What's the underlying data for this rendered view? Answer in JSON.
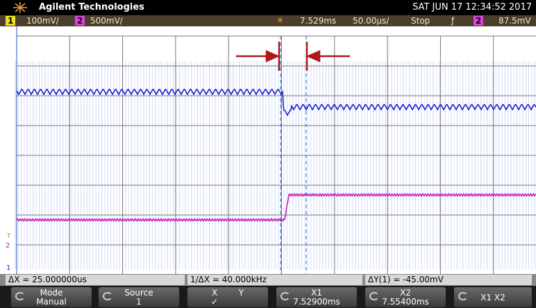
{
  "header": {
    "brand": "Agilent Technologies",
    "datetime": "SAT JUN 17 12:34:52 2017"
  },
  "status": {
    "ch1": "1",
    "ch1_scale": "100mV/",
    "ch2": "2",
    "ch2_scale": "500mV/",
    "delay": "7.529ms",
    "timebase": "50.00µs/",
    "run_state": "Stop",
    "trigger_slope": "ƒ",
    "trigger_source": "2",
    "trigger_level": "87.5mV"
  },
  "markers": {
    "trigger": "T",
    "ch2": "2",
    "ch1": "1"
  },
  "measurements": [
    "ΔX = 25.000000us",
    "1/ΔX = 40.000kHz",
    "ΔY(1) = -45.00mV"
  ],
  "softkeys": [
    {
      "label": "Mode",
      "value": "Manual"
    },
    {
      "label": "Source",
      "value": "1"
    },
    {
      "label": "X",
      "label2": "Y",
      "value": "✓"
    },
    {
      "label": "X1",
      "value": "7.52900ms"
    },
    {
      "label": "X2",
      "value": "7.55400ms"
    },
    {
      "label": "X1 X2"
    }
  ]
}
